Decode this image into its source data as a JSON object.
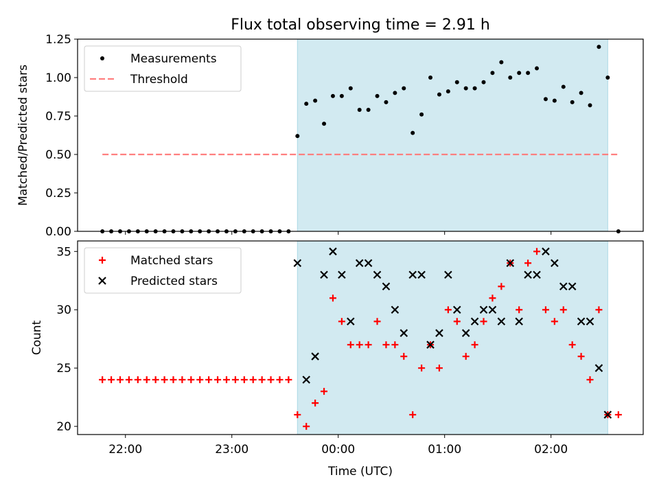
{
  "figure": {
    "title": "Flux total observing time = 2.91 h"
  },
  "chart_data": [
    {
      "type": "scatter",
      "ylabel": "Matched/Predicted stars",
      "ylim": [
        0,
        1.25
      ],
      "yticks": [
        0,
        0.25,
        0.5,
        0.75,
        1.0,
        1.25
      ],
      "ytick_labels": [
        "0.00",
        "0.25",
        "0.50",
        "0.75",
        "1.00",
        "1.25"
      ],
      "xlim": [
        "21:33",
        "02:52"
      ],
      "xticks": [
        "22:00",
        "23:00",
        "00:00",
        "01:00",
        "02:00"
      ],
      "legend_position": "upper-left",
      "shaded_interval": [
        "23:37",
        "02:32"
      ],
      "shade_color": "#add8e6",
      "series": [
        {
          "name": "Measurements",
          "marker": "dot",
          "color": "#000000",
          "x": [
            "21:47",
            "21:52",
            "21:57",
            "22:02",
            "22:07",
            "22:12",
            "22:17",
            "22:22",
            "22:27",
            "22:32",
            "22:37",
            "22:42",
            "22:47",
            "22:52",
            "22:57",
            "23:02",
            "23:07",
            "23:12",
            "23:17",
            "23:22",
            "23:27",
            "23:32",
            "23:37",
            "23:42",
            "23:47",
            "23:52",
            "23:57",
            "00:02",
            "00:07",
            "00:12",
            "00:17",
            "00:22",
            "00:27",
            "00:32",
            "00:37",
            "00:42",
            "00:47",
            "00:52",
            "00:57",
            "01:02",
            "01:07",
            "01:12",
            "01:17",
            "01:22",
            "01:27",
            "01:32",
            "01:37",
            "01:42",
            "01:47",
            "01:52",
            "01:57",
            "02:02",
            "02:07",
            "02:12",
            "02:17",
            "02:22",
            "02:27",
            "02:32",
            "02:38"
          ],
          "y": [
            0,
            0,
            0,
            0,
            0,
            0,
            0,
            0,
            0,
            0,
            0,
            0,
            0,
            0,
            0,
            0,
            0,
            0,
            0,
            0,
            0,
            0,
            0.62,
            0.83,
            0.85,
            0.7,
            0.88,
            0.88,
            0.93,
            0.79,
            0.79,
            0.88,
            0.84,
            0.9,
            0.93,
            0.64,
            0.76,
            1.0,
            0.89,
            0.91,
            0.97,
            0.93,
            0.93,
            0.97,
            1.03,
            1.1,
            1.0,
            1.03,
            1.03,
            1.06,
            0.86,
            0.85,
            0.94,
            0.84,
            0.9,
            0.82,
            1.2,
            1.0,
            0
          ]
        },
        {
          "name": "Threshold",
          "style": "dashed",
          "color": "#ff7f7f",
          "x": [
            "21:47",
            "02:38"
          ],
          "y": [
            0.5,
            0.5
          ]
        }
      ]
    },
    {
      "type": "scatter",
      "xlabel": "Time (UTC)",
      "ylabel": "Count",
      "ylim": [
        19.3,
        35.9
      ],
      "yticks": [
        20,
        25,
        30,
        35
      ],
      "ytick_labels": [
        "20",
        "25",
        "30",
        "35"
      ],
      "xlim": [
        "21:33",
        "02:52"
      ],
      "xticks": [
        "22:00",
        "23:00",
        "00:00",
        "01:00",
        "02:00"
      ],
      "xtick_labels": [
        "22:00",
        "23:00",
        "00:00",
        "01:00",
        "02:00"
      ],
      "legend_position": "upper-left",
      "shaded_interval": [
        "23:37",
        "02:32"
      ],
      "shade_color": "#add8e6",
      "series": [
        {
          "name": "Matched stars",
          "marker": "plus",
          "color": "#ff0000",
          "x": [
            "21:47",
            "21:52",
            "21:57",
            "22:02",
            "22:07",
            "22:12",
            "22:17",
            "22:22",
            "22:27",
            "22:32",
            "22:37",
            "22:42",
            "22:47",
            "22:52",
            "22:57",
            "23:02",
            "23:07",
            "23:12",
            "23:17",
            "23:22",
            "23:27",
            "23:32",
            "23:37",
            "23:42",
            "23:47",
            "23:52",
            "23:57",
            "00:02",
            "00:07",
            "00:12",
            "00:17",
            "00:22",
            "00:27",
            "00:32",
            "00:37",
            "00:42",
            "00:47",
            "00:52",
            "00:57",
            "01:02",
            "01:07",
            "01:12",
            "01:17",
            "01:22",
            "01:27",
            "01:32",
            "01:37",
            "01:42",
            "01:47",
            "01:52",
            "01:57",
            "02:02",
            "02:07",
            "02:12",
            "02:17",
            "02:22",
            "02:27",
            "02:32",
            "02:38"
          ],
          "y": [
            24,
            24,
            24,
            24,
            24,
            24,
            24,
            24,
            24,
            24,
            24,
            24,
            24,
            24,
            24,
            24,
            24,
            24,
            24,
            24,
            24,
            24,
            21,
            20,
            22,
            23,
            31,
            29,
            27,
            27,
            27,
            29,
            27,
            27,
            26,
            21,
            25,
            27,
            25,
            30,
            29,
            26,
            27,
            29,
            31,
            32,
            34,
            30,
            34,
            35,
            30,
            29,
            30,
            27,
            26,
            24,
            30,
            21,
            21
          ]
        },
        {
          "name": "Predicted stars",
          "marker": "x",
          "color": "#000000",
          "x": [
            "23:37",
            "23:42",
            "23:47",
            "23:52",
            "23:57",
            "00:02",
            "00:07",
            "00:12",
            "00:17",
            "00:22",
            "00:27",
            "00:32",
            "00:37",
            "00:42",
            "00:47",
            "00:52",
            "00:57",
            "01:02",
            "01:07",
            "01:12",
            "01:17",
            "01:22",
            "01:27",
            "01:32",
            "01:37",
            "01:42",
            "01:47",
            "01:52",
            "01:57",
            "02:02",
            "02:07",
            "02:12",
            "02:17",
            "02:22",
            "02:27",
            "02:32"
          ],
          "y": [
            34,
            24,
            26,
            33,
            35,
            33,
            29,
            34,
            34,
            33,
            32,
            30,
            28,
            33,
            33,
            27,
            28,
            33,
            30,
            28,
            29,
            30,
            30,
            29,
            34,
            29,
            33,
            33,
            35,
            34,
            32,
            32,
            29,
            29,
            25,
            21
          ]
        }
      ]
    }
  ]
}
